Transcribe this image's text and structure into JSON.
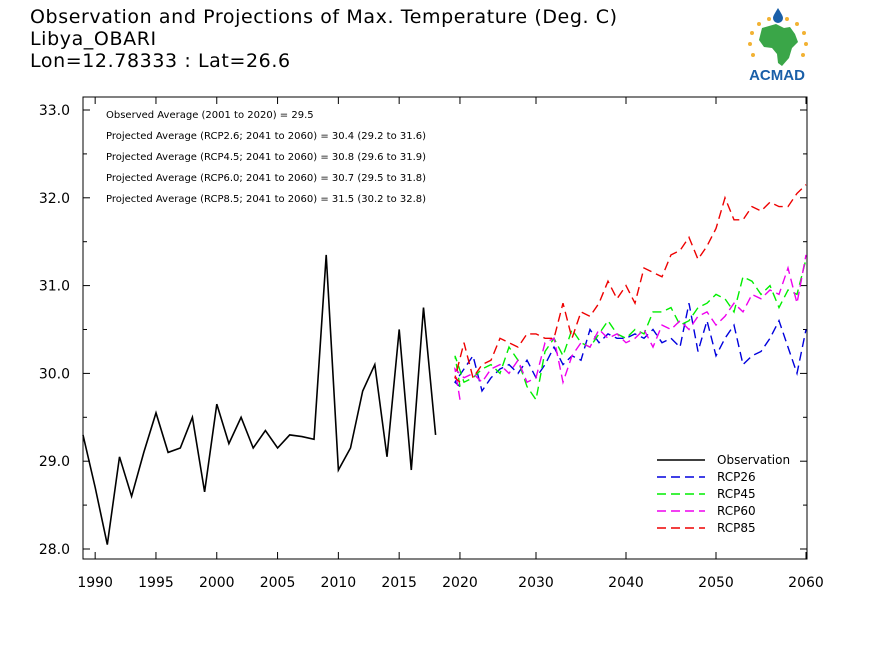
{
  "header": {
    "line1": "Observation and Projections of Max. Temperature (Deg. C)",
    "line2": "Libya_OBARI",
    "line3": "Lon=12.78333 : Lat=26.6"
  },
  "logo": {
    "text": "ACMAD",
    "brand_color": "#1a5fa8",
    "map_color": "#3aa648",
    "star_color": "#f2b233"
  },
  "chart_data": {
    "type": "line",
    "xlim": [
      1989,
      2060
    ],
    "ylim": [
      27.9,
      33.1
    ],
    "xticks": [
      1990,
      1995,
      2000,
      2005,
      2010,
      2015,
      2020,
      2030,
      2040,
      2050,
      2060
    ],
    "yticks": [
      28.0,
      29.0,
      30.0,
      31.0,
      32.0,
      33.0
    ],
    "ytick_labels": [
      "28.0",
      "29.0",
      "30.0",
      "31.0",
      "32.0",
      "33.0"
    ],
    "grid": false,
    "legend_position": "bottom-right",
    "annotations": [
      "Observed Average (2001 to 2020) = 29.5",
      "Projected Average (RCP2.6; 2041 to 2060) = 30.4 (29.2 to 31.6)",
      "Projected Average (RCP4.5; 2041 to 2060) = 30.8 (29.6 to 31.9)",
      "Projected Average (RCP6.0; 2041 to 2060) = 30.7 (29.5 to 31.8)",
      "Projected Average (RCP8.5; 2041 to 2060) = 31.5 (30.2 to 32.8)"
    ],
    "series": [
      {
        "name": "Observation",
        "color": "#000000",
        "dash": "solid",
        "x_start": 1989,
        "values": [
          29.3,
          28.7,
          28.05,
          29.05,
          28.6,
          29.1,
          29.55,
          29.1,
          29.15,
          29.5,
          28.65,
          29.65,
          29.2,
          29.5,
          29.15,
          29.35,
          29.15,
          29.3,
          29.28,
          29.25,
          31.35,
          28.9,
          29.15,
          29.8,
          30.1,
          29.05,
          30.5,
          28.9,
          30.75,
          29.3
        ]
      },
      {
        "name": "RCP26",
        "color": "#0000dd",
        "dash": "dashed",
        "x_start": 2020,
        "values": [
          29.85,
          29.9,
          30.05,
          30.2,
          29.8,
          29.95,
          30.05,
          30.1,
          30.0,
          30.15,
          29.95,
          30.1,
          30.3,
          30.1,
          30.2,
          30.15,
          30.5,
          30.35,
          30.45,
          30.4,
          30.4,
          30.45,
          30.4,
          30.5,
          30.35,
          30.4,
          30.3,
          30.8,
          30.25,
          30.6,
          30.2,
          30.4,
          30.55,
          30.1,
          30.2,
          30.25,
          30.4,
          30.6,
          30.3,
          30.0,
          30.5
        ]
      },
      {
        "name": "RCP45",
        "color": "#00ee00",
        "dash": "dashed",
        "x_start": 2020,
        "values": [
          29.85,
          30.2,
          29.9,
          29.95,
          30.05,
          30.1,
          30.0,
          30.3,
          30.15,
          29.85,
          29.7,
          30.25,
          30.4,
          30.2,
          30.5,
          30.35,
          30.3,
          30.45,
          30.6,
          30.45,
          30.4,
          30.5,
          30.45,
          30.7,
          30.7,
          30.75,
          30.55,
          30.6,
          30.75,
          30.8,
          30.9,
          30.85,
          30.7,
          31.1,
          31.05,
          30.9,
          31.0,
          30.75,
          30.95,
          30.9,
          31.3
        ]
      },
      {
        "name": "RCP60",
        "color": "#ee00ee",
        "dash": "dashed",
        "x_start": 2020,
        "values": [
          29.7,
          30.05,
          29.95,
          30.0,
          29.9,
          30.05,
          30.1,
          30.0,
          30.15,
          29.9,
          29.95,
          30.35,
          30.4,
          29.9,
          30.2,
          30.35,
          30.3,
          30.5,
          30.4,
          30.45,
          30.35,
          30.4,
          30.5,
          30.3,
          30.55,
          30.5,
          30.6,
          30.5,
          30.65,
          30.7,
          30.55,
          30.65,
          30.8,
          30.7,
          30.9,
          30.85,
          30.95,
          30.9,
          31.2,
          30.8,
          31.35
        ]
      },
      {
        "name": "RCP85",
        "color": "#ee0000",
        "dash": "dashed",
        "x_start": 2020,
        "values": [
          29.9,
          29.95,
          30.35,
          29.95,
          30.1,
          30.15,
          30.4,
          30.35,
          30.3,
          30.45,
          30.45,
          30.4,
          30.4,
          30.8,
          30.4,
          30.7,
          30.65,
          30.8,
          31.05,
          30.85,
          31.0,
          30.8,
          31.2,
          31.15,
          31.1,
          31.35,
          31.4,
          31.55,
          31.3,
          31.45,
          31.65,
          32.0,
          31.75,
          31.75,
          31.9,
          31.85,
          31.95,
          31.9,
          31.9,
          32.05,
          32.15
        ]
      }
    ]
  }
}
